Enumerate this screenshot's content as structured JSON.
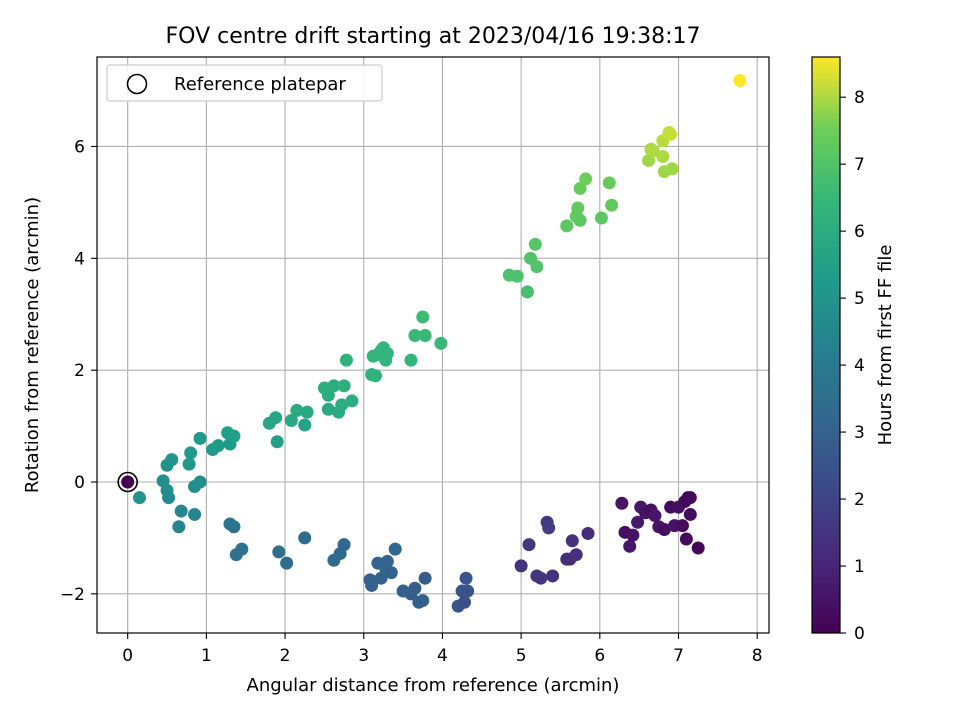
{
  "chart_data": {
    "type": "scatter",
    "title": "FOV centre drift starting at 2023/04/16 19:38:17",
    "xlabel": "Angular distance from reference (arcmin)",
    "ylabel": "Rotation from reference (arcmin)",
    "xlim": [
      -0.39,
      8.15
    ],
    "ylim": [
      -2.7,
      7.6
    ],
    "xticks": [
      0,
      1,
      2,
      3,
      4,
      5,
      6,
      7,
      8
    ],
    "yticks": [
      -2,
      0,
      2,
      4,
      6
    ],
    "xtick_labels": [
      "0",
      "1",
      "2",
      "3",
      "4",
      "5",
      "6",
      "7",
      "8"
    ],
    "ytick_labels": [
      "−2",
      "0",
      "2",
      "4",
      "6"
    ],
    "grid": true,
    "legend": {
      "placement": "upper-left",
      "entries": [
        "Reference platepar"
      ]
    },
    "colorbar": {
      "label": "Hours from first FF file",
      "colormap": "viridis",
      "range": [
        0,
        8.6
      ],
      "ticks": [
        0,
        1,
        2,
        3,
        4,
        5,
        6,
        7,
        8
      ],
      "tick_labels": [
        "0",
        "1",
        "2",
        "3",
        "4",
        "5",
        "6",
        "7",
        "8"
      ]
    },
    "reference_point": {
      "x": 0,
      "y": 0
    },
    "columns": [
      "x",
      "y",
      "hours"
    ],
    "points": [
      [
        0.0,
        0.0,
        0.0
      ],
      [
        6.28,
        -0.38,
        0.5
      ],
      [
        6.32,
        -0.9,
        0.4
      ],
      [
        6.38,
        -1.15,
        0.6
      ],
      [
        6.42,
        -0.95,
        0.5
      ],
      [
        6.48,
        -0.72,
        0.7
      ],
      [
        6.52,
        -0.45,
        0.6
      ],
      [
        6.58,
        -0.55,
        0.5
      ],
      [
        6.65,
        -0.5,
        0.4
      ],
      [
        6.7,
        -0.6,
        0.6
      ],
      [
        6.75,
        -0.8,
        0.5
      ],
      [
        6.82,
        -0.85,
        0.4
      ],
      [
        6.9,
        -0.45,
        0.3
      ],
      [
        6.95,
        -0.78,
        0.5
      ],
      [
        7.0,
        -0.45,
        0.4
      ],
      [
        7.05,
        -0.78,
        0.3
      ],
      [
        7.08,
        -0.35,
        0.2
      ],
      [
        7.1,
        -1.02,
        0.3
      ],
      [
        7.12,
        -0.28,
        0.1
      ],
      [
        7.15,
        -0.28,
        0.2
      ],
      [
        7.15,
        -0.58,
        0.3
      ],
      [
        7.25,
        -1.18,
        0.2
      ],
      [
        5.0,
        -1.5,
        1.4
      ],
      [
        5.1,
        -1.12,
        1.6
      ],
      [
        5.2,
        -1.68,
        1.5
      ],
      [
        5.25,
        -1.72,
        1.5
      ],
      [
        5.33,
        -0.72,
        1.7
      ],
      [
        5.35,
        -0.82,
        1.8
      ],
      [
        5.4,
        -1.68,
        1.4
      ],
      [
        5.58,
        -1.38,
        1.3
      ],
      [
        5.62,
        -1.38,
        1.2
      ],
      [
        5.65,
        -1.05,
        1.4
      ],
      [
        5.7,
        -1.3,
        1.3
      ],
      [
        5.85,
        -0.92,
        1.2
      ],
      [
        3.6,
        -2.0,
        2.8
      ],
      [
        3.65,
        -1.9,
        2.9
      ],
      [
        3.7,
        -2.15,
        2.9
      ],
      [
        3.75,
        -2.12,
        2.9
      ],
      [
        3.78,
        -1.72,
        2.8
      ],
      [
        4.2,
        -2.22,
        2.6
      ],
      [
        4.25,
        -1.95,
        2.5
      ],
      [
        4.28,
        -2.15,
        2.4
      ],
      [
        4.3,
        -1.72,
        2.5
      ],
      [
        4.32,
        -1.95,
        2.5
      ],
      [
        3.08,
        -1.75,
        3.1
      ],
      [
        3.1,
        -1.85,
        3.0
      ],
      [
        3.18,
        -1.45,
        3.1
      ],
      [
        3.22,
        -1.72,
        3.0
      ],
      [
        3.28,
        -1.55,
        3.2
      ],
      [
        3.3,
        -1.42,
        3.1
      ],
      [
        3.35,
        -1.62,
        3.0
      ],
      [
        3.4,
        -1.2,
        3.2
      ],
      [
        3.5,
        -1.95,
        2.9
      ],
      [
        1.3,
        -0.75,
        3.8
      ],
      [
        1.35,
        -0.8,
        3.7
      ],
      [
        1.38,
        -1.3,
        3.6
      ],
      [
        1.45,
        -1.2,
        3.6
      ],
      [
        1.92,
        -1.25,
        3.5
      ],
      [
        2.02,
        -1.45,
        3.4
      ],
      [
        2.25,
        -1.0,
        3.4
      ],
      [
        2.62,
        -1.4,
        3.3
      ],
      [
        2.7,
        -1.28,
        3.3
      ],
      [
        2.75,
        -1.12,
        3.2
      ],
      [
        0.15,
        -0.28,
        4.9
      ],
      [
        0.45,
        0.02,
        4.8
      ],
      [
        0.5,
        -0.15,
        4.8
      ],
      [
        0.52,
        -0.28,
        4.6
      ],
      [
        0.5,
        0.3,
        4.9
      ],
      [
        0.56,
        0.4,
        5.0
      ],
      [
        0.65,
        -0.8,
        4.4
      ],
      [
        0.68,
        -0.52,
        4.5
      ],
      [
        0.78,
        0.32,
        5.1
      ],
      [
        0.8,
        0.52,
        5.2
      ],
      [
        0.85,
        -0.08,
        4.7
      ],
      [
        0.85,
        -0.58,
        4.5
      ],
      [
        0.92,
        0.0,
        4.8
      ],
      [
        0.92,
        0.78,
        5.2
      ],
      [
        1.08,
        0.58,
        5.3
      ],
      [
        1.15,
        0.65,
        5.3
      ],
      [
        1.27,
        0.88,
        5.4
      ],
      [
        1.3,
        0.68,
        5.3
      ],
      [
        1.35,
        0.82,
        5.4
      ],
      [
        1.8,
        1.05,
        5.7
      ],
      [
        1.88,
        1.15,
        5.7
      ],
      [
        1.9,
        0.72,
        5.5
      ],
      [
        2.08,
        1.1,
        5.8
      ],
      [
        2.15,
        1.28,
        5.9
      ],
      [
        2.25,
        1.02,
        5.6
      ],
      [
        2.28,
        1.25,
        5.8
      ],
      [
        2.5,
        1.68,
        6.0
      ],
      [
        2.55,
        1.3,
        5.8
      ],
      [
        2.55,
        1.55,
        6.0
      ],
      [
        2.62,
        1.72,
        6.0
      ],
      [
        2.68,
        1.25,
        5.9
      ],
      [
        2.72,
        1.38,
        6.0
      ],
      [
        2.75,
        1.72,
        6.1
      ],
      [
        2.78,
        2.18,
        6.2
      ],
      [
        2.85,
        1.45,
        6.0
      ],
      [
        3.1,
        1.92,
        6.2
      ],
      [
        3.12,
        2.25,
        6.3
      ],
      [
        3.15,
        1.9,
        6.2
      ],
      [
        3.18,
        2.28,
        6.3
      ],
      [
        3.22,
        2.35,
        6.3
      ],
      [
        3.25,
        2.4,
        6.4
      ],
      [
        3.28,
        2.18,
        6.3
      ],
      [
        3.3,
        2.3,
        6.3
      ],
      [
        3.6,
        2.18,
        6.4
      ],
      [
        3.65,
        2.62,
        6.5
      ],
      [
        3.75,
        2.95,
        6.6
      ],
      [
        3.78,
        2.62,
        6.5
      ],
      [
        3.98,
        2.48,
        6.5
      ],
      [
        4.85,
        3.7,
        6.9
      ],
      [
        4.95,
        3.68,
        6.9
      ],
      [
        5.08,
        3.4,
        6.8
      ],
      [
        5.12,
        4.0,
        7.0
      ],
      [
        5.18,
        4.25,
        7.1
      ],
      [
        5.2,
        3.85,
        7.0
      ],
      [
        5.58,
        4.58,
        7.2
      ],
      [
        5.7,
        4.75,
        7.3
      ],
      [
        5.72,
        4.9,
        7.3
      ],
      [
        5.75,
        4.68,
        7.2
      ],
      [
        5.75,
        5.25,
        7.4
      ],
      [
        5.82,
        5.42,
        7.5
      ],
      [
        6.02,
        4.72,
        7.2
      ],
      [
        6.12,
        5.35,
        7.4
      ],
      [
        6.15,
        4.95,
        7.3
      ],
      [
        6.62,
        5.75,
        7.9
      ],
      [
        6.65,
        5.95,
        8.0
      ],
      [
        6.68,
        5.92,
        8.0
      ],
      [
        6.8,
        6.1,
        8.1
      ],
      [
        6.8,
        5.82,
        8.0
      ],
      [
        6.82,
        5.55,
        7.9
      ],
      [
        6.88,
        6.25,
        8.2
      ],
      [
        6.9,
        6.22,
        8.2
      ],
      [
        6.92,
        5.6,
        7.9
      ],
      [
        7.78,
        7.18,
        8.6
      ]
    ]
  }
}
